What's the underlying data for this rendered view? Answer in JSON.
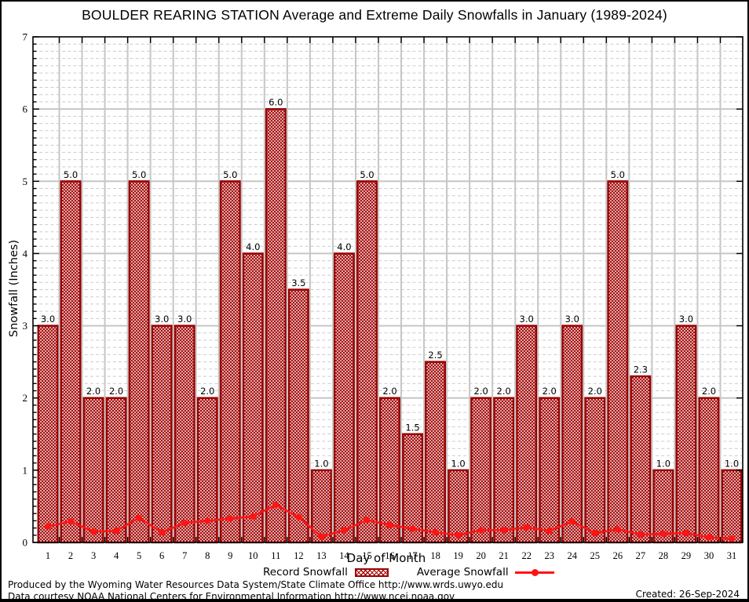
{
  "title": "BOULDER REARING STATION Average and Extreme Daily Snowfalls in January (1989-2024)",
  "axes": {
    "xlabel": "Day of Month",
    "ylabel": "Snowfall (Inches)"
  },
  "legend": {
    "record": "Record Snowfall",
    "average": "Average Snowfall"
  },
  "footer": {
    "line1": "Produced by the Wyoming Water Resources Data System/State Climate Office http://www.wrds.uwyo.edu",
    "line2": "Data courtesy NOAA National Centers for Environmental Information http://www.ncei.noaa.gov",
    "created": "Created: 26-Sep-2024"
  },
  "colors": {
    "bar_fill": "#a50b0b",
    "bar_border": "#990000",
    "line": "#ff1414",
    "grid_major": "#c6c6c6",
    "grid_minor": "#cbcbcb",
    "axis": "#000000"
  },
  "chart_data": {
    "type": "bar",
    "title": "BOULDER REARING STATION Average and Extreme Daily Snowfalls in January (1989-2024)",
    "xlabel": "Day of Month",
    "ylabel": "Snowfall (Inches)",
    "categories": [
      "1",
      "2",
      "3",
      "4",
      "5",
      "6",
      "7",
      "8",
      "9",
      "10",
      "11",
      "12",
      "13",
      "14",
      "15",
      "16",
      "17",
      "18",
      "19",
      "20",
      "21",
      "22",
      "23",
      "24",
      "25",
      "26",
      "27",
      "28",
      "29",
      "30",
      "31"
    ],
    "series": [
      {
        "name": "Record Snowfall",
        "type": "bar",
        "values": [
          3.0,
          5.0,
          2.0,
          2.0,
          5.0,
          3.0,
          3.0,
          2.0,
          5.0,
          4.0,
          6.0,
          3.5,
          1.0,
          4.0,
          5.0,
          2.0,
          1.5,
          2.5,
          1.0,
          2.0,
          2.0,
          3.0,
          2.0,
          3.0,
          2.0,
          5.0,
          2.3,
          1.0,
          3.0,
          2.0,
          1.0
        ]
      },
      {
        "name": "Average Snowfall",
        "type": "line",
        "values": [
          0.22,
          0.29,
          0.15,
          0.16,
          0.34,
          0.14,
          0.27,
          0.3,
          0.33,
          0.36,
          0.52,
          0.35,
          0.08,
          0.17,
          0.31,
          0.24,
          0.19,
          0.14,
          0.1,
          0.17,
          0.17,
          0.21,
          0.16,
          0.29,
          0.13,
          0.18,
          0.11,
          0.12,
          0.13,
          0.07,
          0.05
        ]
      }
    ],
    "ylim": [
      0,
      7
    ],
    "yticks": [
      0,
      1,
      2,
      3,
      4,
      5,
      6,
      7
    ],
    "grid": "solid major gridlines at integers, dashed minor gridlines every 0.1, vertical gridlines at day boundaries",
    "legend_position": "bottom",
    "bar_value_labels_decimals": 1
  }
}
